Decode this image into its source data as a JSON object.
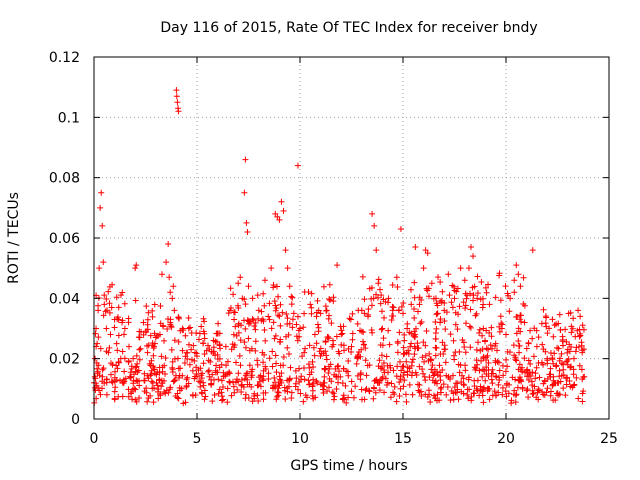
{
  "chart_data": {
    "type": "scatter",
    "title": "Day 116 of 2015, Rate Of TEC Index for receiver bndy",
    "xlabel": "GPS time / hours",
    "ylabel": "ROTI / TECUs",
    "xlim": [
      0,
      25
    ],
    "ylim": [
      0,
      0.12
    ],
    "x_ticks": [
      0,
      5,
      10,
      15,
      20,
      25
    ],
    "x_tick_labels": [
      "0",
      "5",
      "10",
      "15",
      "20",
      "25"
    ],
    "y_ticks": [
      0,
      0.02,
      0.04,
      0.06,
      0.08,
      0.1,
      0.12
    ],
    "y_tick_labels": [
      "0",
      "0.02",
      "0.04",
      "0.06",
      "0.08",
      "0.1",
      "0.12"
    ],
    "grid": true,
    "marker": "+",
    "color": "#ff0000",
    "series": [
      {
        "name": "ROTI",
        "points": [
          [
            0.0,
            0.012
          ],
          [
            0.05,
            0.02
          ],
          [
            0.1,
            0.03
          ],
          [
            0.15,
            0.025
          ],
          [
            0.2,
            0.036
          ],
          [
            0.25,
            0.05
          ],
          [
            0.3,
            0.07
          ],
          [
            0.35,
            0.075
          ],
          [
            0.4,
            0.064
          ],
          [
            0.45,
            0.052
          ],
          [
            0.5,
            0.038
          ],
          [
            0.6,
            0.03
          ],
          [
            0.7,
            0.022
          ],
          [
            0.8,
            0.028
          ],
          [
            0.9,
            0.018
          ],
          [
            1.0,
            0.033
          ],
          [
            1.1,
            0.025
          ],
          [
            1.2,
            0.037
          ],
          [
            1.3,
            0.02
          ],
          [
            1.5,
            0.03
          ],
          [
            1.7,
            0.024
          ],
          [
            1.9,
            0.02
          ],
          [
            2.0,
            0.05
          ],
          [
            2.05,
            0.051
          ],
          [
            2.2,
            0.029
          ],
          [
            2.4,
            0.032
          ],
          [
            2.6,
            0.022
          ],
          [
            2.8,
            0.016
          ],
          [
            3.0,
            0.027
          ],
          [
            3.2,
            0.028
          ],
          [
            3.3,
            0.048
          ],
          [
            3.5,
            0.052
          ],
          [
            3.6,
            0.058
          ],
          [
            3.65,
            0.047
          ],
          [
            3.7,
            0.042
          ],
          [
            3.8,
            0.04
          ],
          [
            3.85,
            0.044
          ],
          [
            3.9,
            0.036
          ],
          [
            4.0,
            0.109
          ],
          [
            4.02,
            0.107
          ],
          [
            4.05,
            0.105
          ],
          [
            4.08,
            0.103
          ],
          [
            4.1,
            0.102
          ],
          [
            4.3,
            0.03
          ],
          [
            4.5,
            0.022
          ],
          [
            4.6,
            0.03
          ],
          [
            4.8,
            0.016
          ],
          [
            5.0,
            0.014
          ],
          [
            5.3,
            0.012
          ],
          [
            5.6,
            0.014
          ],
          [
            5.9,
            0.016
          ],
          [
            6.2,
            0.018
          ],
          [
            6.4,
            0.024
          ],
          [
            6.6,
            0.036
          ],
          [
            6.8,
            0.033
          ],
          [
            7.0,
            0.045
          ],
          [
            7.1,
            0.047
          ],
          [
            7.2,
            0.04
          ],
          [
            7.3,
            0.075
          ],
          [
            7.35,
            0.086
          ],
          [
            7.4,
            0.065
          ],
          [
            7.45,
            0.062
          ],
          [
            7.5,
            0.044
          ],
          [
            7.7,
            0.04
          ],
          [
            8.0,
            0.036
          ],
          [
            8.3,
            0.046
          ],
          [
            8.6,
            0.05
          ],
          [
            8.8,
            0.068
          ],
          [
            8.9,
            0.067
          ],
          [
            9.0,
            0.066
          ],
          [
            9.1,
            0.072
          ],
          [
            9.2,
            0.069
          ],
          [
            9.3,
            0.056
          ],
          [
            9.4,
            0.05
          ],
          [
            9.5,
            0.044
          ],
          [
            9.7,
            0.035
          ],
          [
            9.9,
            0.084
          ],
          [
            10.0,
            0.03
          ],
          [
            10.2,
            0.022
          ],
          [
            10.5,
            0.038
          ],
          [
            10.8,
            0.034
          ],
          [
            11.0,
            0.035
          ],
          [
            11.3,
            0.036
          ],
          [
            11.6,
            0.026
          ],
          [
            11.8,
            0.051
          ],
          [
            12.0,
            0.028
          ],
          [
            12.5,
            0.024
          ],
          [
            12.8,
            0.02
          ],
          [
            13.0,
            0.036
          ],
          [
            13.3,
            0.034
          ],
          [
            13.5,
            0.068
          ],
          [
            13.6,
            0.064
          ],
          [
            13.7,
            0.056
          ],
          [
            13.8,
            0.045
          ],
          [
            14.0,
            0.03
          ],
          [
            14.3,
            0.04
          ],
          [
            14.5,
            0.036
          ],
          [
            14.7,
            0.047
          ],
          [
            14.9,
            0.063
          ],
          [
            15.0,
            0.035
          ],
          [
            15.2,
            0.03
          ],
          [
            15.4,
            0.038
          ],
          [
            15.6,
            0.057
          ],
          [
            15.8,
            0.038
          ],
          [
            16.0,
            0.05
          ],
          [
            16.1,
            0.056
          ],
          [
            16.2,
            0.055
          ],
          [
            16.4,
            0.045
          ],
          [
            16.6,
            0.04
          ],
          [
            16.8,
            0.032
          ],
          [
            17.0,
            0.036
          ],
          [
            17.2,
            0.048
          ],
          [
            17.5,
            0.04
          ],
          [
            17.8,
            0.05
          ],
          [
            18.0,
            0.046
          ],
          [
            18.2,
            0.05
          ],
          [
            18.3,
            0.057
          ],
          [
            18.4,
            0.054
          ],
          [
            18.6,
            0.04
          ],
          [
            18.9,
            0.03
          ],
          [
            19.2,
            0.038
          ],
          [
            19.5,
            0.025
          ],
          [
            19.8,
            0.03
          ],
          [
            20.0,
            0.028
          ],
          [
            20.2,
            0.04
          ],
          [
            20.4,
            0.046
          ],
          [
            20.5,
            0.051
          ],
          [
            20.6,
            0.048
          ],
          [
            20.7,
            0.044
          ],
          [
            20.9,
            0.032
          ],
          [
            21.1,
            0.025
          ],
          [
            21.3,
            0.056
          ],
          [
            21.5,
            0.024
          ],
          [
            21.8,
            0.018
          ],
          [
            22.0,
            0.02
          ],
          [
            22.3,
            0.014
          ],
          [
            22.6,
            0.016
          ],
          [
            23.0,
            0.018
          ],
          [
            23.3,
            0.02
          ],
          [
            23.5,
            0.036
          ],
          [
            23.6,
            0.034
          ],
          [
            23.7,
            0.022
          ],
          [
            23.8,
            0.014
          ]
        ]
      }
    ]
  }
}
